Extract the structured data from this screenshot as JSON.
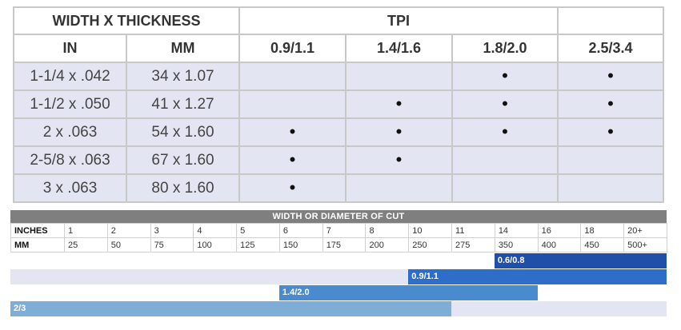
{
  "tpi_table": {
    "header_width_thickness": "WIDTH X THICKNESS",
    "header_tpi": "TPI",
    "col_in": "IN",
    "col_mm": "MM",
    "tpi_cols": [
      "0.9/1.1",
      "1.4/1.6",
      "1.8/2.0",
      "2.5/3.4"
    ],
    "rows": [
      {
        "in": "1-1/4 x .042",
        "mm": "34 x 1.07",
        "marks": [
          "",
          "",
          "•",
          "•"
        ]
      },
      {
        "in": "1-1/2 x .050",
        "mm": "41 x 1.27",
        "marks": [
          "",
          "•",
          "•",
          "•"
        ]
      },
      {
        "in": "2 x .063",
        "mm": "54 x 1.60",
        "marks": [
          "•",
          "•",
          "•",
          "•"
        ]
      },
      {
        "in": "2-5/8 x .063",
        "mm": "67 x 1.60",
        "marks": [
          "•",
          "•",
          "",
          ""
        ]
      },
      {
        "in": "3 x .063",
        "mm": "80 x 1.60",
        "marks": [
          "•",
          "",
          "",
          ""
        ]
      }
    ]
  },
  "cut_chart": {
    "title": "WIDTH OR DIAMETER OF CUT",
    "inches_label": "INCHES",
    "mm_label": "MM",
    "inches": [
      "1",
      "2",
      "3",
      "4",
      "5",
      "6",
      "7",
      "8",
      "10",
      "11",
      "14",
      "16",
      "18",
      "20+"
    ],
    "mm": [
      "25",
      "50",
      "75",
      "100",
      "125",
      "150",
      "175",
      "200",
      "250",
      "275",
      "350",
      "400",
      "450",
      "500+"
    ],
    "colors": {
      "dark": "#1f4fa8",
      "mid": "#2e6ec8",
      "light": "#4a8bd0",
      "pale": "#7eaed8"
    },
    "bars": [
      {
        "label": "0.6/0.8",
        "from_col": 10,
        "to_col": 14,
        "color": "#1f4fa8",
        "track": "white"
      },
      {
        "label": "0.9/1.1",
        "from_col": 8,
        "to_col": 14,
        "color": "#2e6ec8",
        "track": "shade"
      },
      {
        "label": "1.4/2.0",
        "from_col": 5,
        "to_col": 11,
        "color": "#4a8bd0",
        "track": "white"
      },
      {
        "label": "2/3",
        "from_col": 0,
        "to_col": 9,
        "color": "#7eaed8",
        "track": "shade"
      }
    ]
  }
}
